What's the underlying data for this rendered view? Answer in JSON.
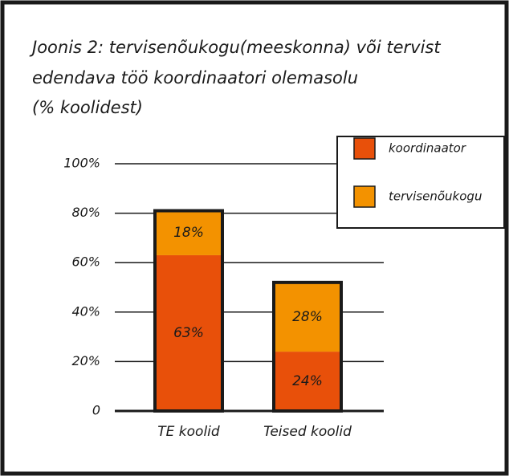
{
  "chart_data": {
    "type": "stacked_bar",
    "title": [
      "Joonis 2: tervisenõukogu(meeskonna) või tervist",
      "edendava töö koordinaatori olemasolu",
      "(% koolidest)"
    ],
    "categories": [
      "TE koolid",
      "Teised koolid"
    ],
    "series": [
      {
        "name": "koordinaator",
        "color": "#e8500a",
        "values": [
          63,
          24
        ],
        "value_labels": [
          "63%",
          "24%"
        ]
      },
      {
        "name": "tervisenõukogu",
        "color": "#f39200",
        "values": [
          18,
          28
        ],
        "value_labels": [
          "18%",
          "28%"
        ]
      }
    ],
    "ylim": [
      0,
      100
    ],
    "yticks": [
      0,
      {
        "value": 20,
        "label": "20%"
      },
      {
        "value": 40,
        "label": "40%"
      },
      {
        "value": 60,
        "label": "60%"
      },
      {
        "value": 80,
        "label": "80%"
      },
      {
        "value": 100,
        "label": "100%"
      }
    ],
    "grid": true,
    "legend": "upper right"
  }
}
